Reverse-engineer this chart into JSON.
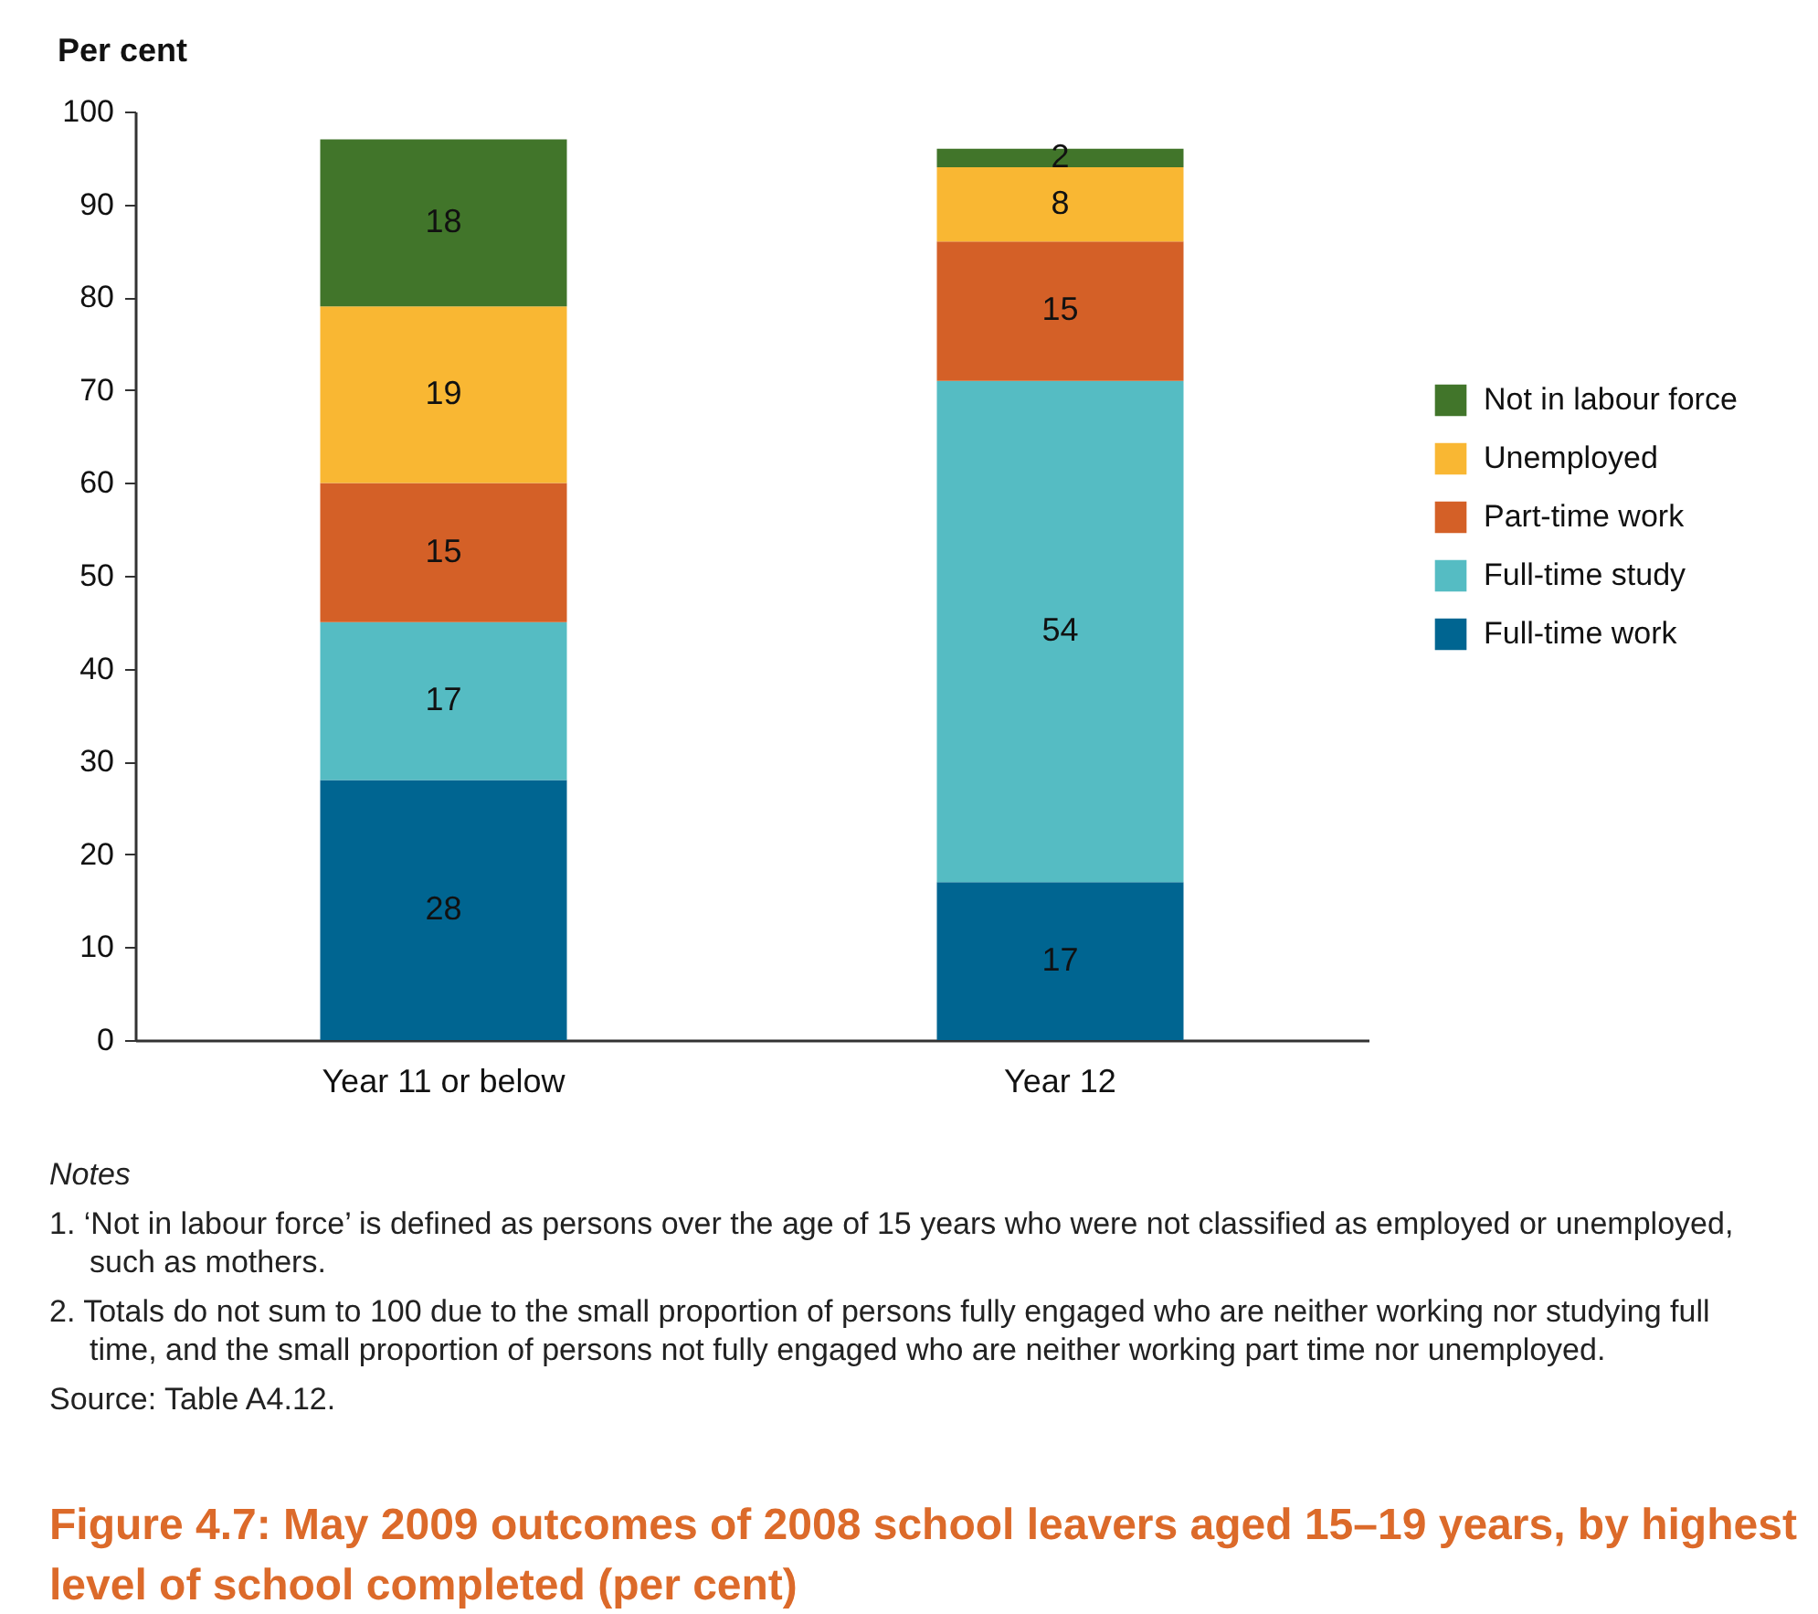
{
  "chart_data": {
    "type": "bar",
    "stacked": true,
    "title": "Figure 4.7: May 2009 outcomes of 2008 school leavers aged 15–19 years, by highest level of school completed (per cent)",
    "ylabel": "Per cent",
    "categories": [
      "Year 11 or below",
      "Year 12"
    ],
    "series": [
      {
        "name": "Full-time work",
        "color": "#006591",
        "values": [
          28,
          17
        ]
      },
      {
        "name": "Full-time study",
        "color": "#55bcc3",
        "values": [
          17,
          54
        ]
      },
      {
        "name": "Part-time work",
        "color": "#d46027",
        "values": [
          15,
          15
        ]
      },
      {
        "name": "Unemployed",
        "color": "#f9b733",
        "values": [
          19,
          8
        ]
      },
      {
        "name": "Not in labour force",
        "color": "#41752a",
        "values": [
          18,
          2
        ]
      }
    ],
    "ylim": [
      0,
      100
    ],
    "yticks": [
      0,
      10,
      20,
      30,
      40,
      50,
      60,
      70,
      80,
      90,
      100
    ],
    "data_labels": true,
    "legend": "right",
    "grid": false,
    "annotations": [
      "Notes",
      "1. ‘Not in labour force’ is defined as persons over the age of 15 years who were not classified as employed or unemployed, such as mothers.",
      "2. Totals do not sum to 100 due to the small proportion of persons fully engaged who are neither working nor studying full time, and the small proportion of persons not fully engaged who are neither working part time nor unemployed.",
      "Source: Table A4.12."
    ]
  }
}
